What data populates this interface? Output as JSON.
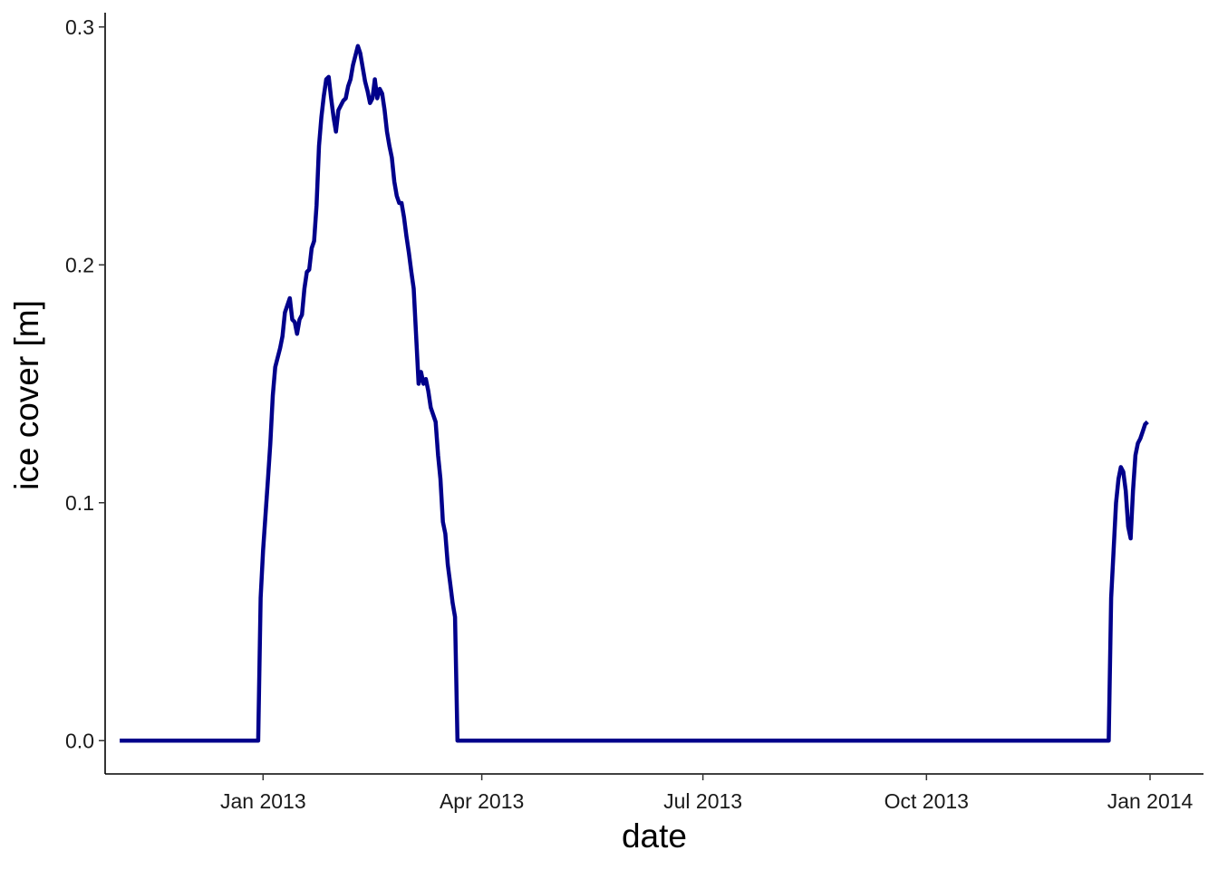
{
  "chart_data": {
    "type": "line",
    "xlabel": "date",
    "ylabel": "ice cover [m]",
    "xlim": [
      "2012-10-28",
      "2014-01-23"
    ],
    "ylim": [
      -0.014,
      0.306
    ],
    "x_ticks": [
      {
        "date": "2013-01-01",
        "label": "Jan 2013"
      },
      {
        "date": "2013-04-01",
        "label": "Apr 2013"
      },
      {
        "date": "2013-07-01",
        "label": "Jul 2013"
      },
      {
        "date": "2013-10-01",
        "label": "Oct 2013"
      },
      {
        "date": "2014-01-01",
        "label": "Jan 2014"
      }
    ],
    "y_ticks": [
      {
        "value": 0.0,
        "label": "0.0"
      },
      {
        "value": 0.1,
        "label": "0.1"
      },
      {
        "value": 0.2,
        "label": "0.2"
      },
      {
        "value": 0.3,
        "label": "0.3"
      }
    ],
    "grid": false,
    "legend": "none",
    "series": [
      {
        "color": "#00008B",
        "points": [
          [
            "2012-11-03",
            0.0
          ],
          [
            "2012-12-30",
            0.0
          ],
          [
            "2012-12-31",
            0.06
          ],
          [
            "2013-01-01",
            0.08
          ],
          [
            "2013-01-02",
            0.095
          ],
          [
            "2013-01-03",
            0.11
          ],
          [
            "2013-01-04",
            0.125
          ],
          [
            "2013-01-05",
            0.145
          ],
          [
            "2013-01-06",
            0.157
          ],
          [
            "2013-01-08",
            0.165
          ],
          [
            "2013-01-09",
            0.17
          ],
          [
            "2013-01-10",
            0.18
          ],
          [
            "2013-01-11",
            0.183
          ],
          [
            "2013-01-12",
            0.186
          ],
          [
            "2013-01-13",
            0.177
          ],
          [
            "2013-01-14",
            0.176
          ],
          [
            "2013-01-15",
            0.171
          ],
          [
            "2013-01-16",
            0.177
          ],
          [
            "2013-01-17",
            0.179
          ],
          [
            "2013-01-18",
            0.19
          ],
          [
            "2013-01-19",
            0.197
          ],
          [
            "2013-01-20",
            0.198
          ],
          [
            "2013-01-21",
            0.207
          ],
          [
            "2013-01-22",
            0.21
          ],
          [
            "2013-01-23",
            0.225
          ],
          [
            "2013-01-24",
            0.25
          ],
          [
            "2013-01-25",
            0.262
          ],
          [
            "2013-01-26",
            0.271
          ],
          [
            "2013-01-27",
            0.278
          ],
          [
            "2013-01-28",
            0.279
          ],
          [
            "2013-01-29",
            0.27
          ],
          [
            "2013-01-30",
            0.262
          ],
          [
            "2013-01-31",
            0.256
          ],
          [
            "2013-02-01",
            0.265
          ],
          [
            "2013-02-02",
            0.267
          ],
          [
            "2013-02-03",
            0.269
          ],
          [
            "2013-02-04",
            0.27
          ],
          [
            "2013-02-05",
            0.275
          ],
          [
            "2013-02-06",
            0.278
          ],
          [
            "2013-02-07",
            0.284
          ],
          [
            "2013-02-08",
            0.288
          ],
          [
            "2013-02-09",
            0.292
          ],
          [
            "2013-02-10",
            0.289
          ],
          [
            "2013-02-11",
            0.283
          ],
          [
            "2013-02-12",
            0.277
          ],
          [
            "2013-02-13",
            0.273
          ],
          [
            "2013-02-14",
            0.268
          ],
          [
            "2013-02-15",
            0.27
          ],
          [
            "2013-02-16",
            0.278
          ],
          [
            "2013-02-17",
            0.27
          ],
          [
            "2013-02-18",
            0.274
          ],
          [
            "2013-02-19",
            0.272
          ],
          [
            "2013-02-20",
            0.265
          ],
          [
            "2013-02-21",
            0.256
          ],
          [
            "2013-02-22",
            0.25
          ],
          [
            "2013-02-23",
            0.245
          ],
          [
            "2013-02-24",
            0.235
          ],
          [
            "2013-02-25",
            0.229
          ],
          [
            "2013-02-26",
            0.226
          ],
          [
            "2013-02-27",
            0.226
          ],
          [
            "2013-02-28",
            0.22
          ],
          [
            "2013-03-01",
            0.212
          ],
          [
            "2013-03-02",
            0.205
          ],
          [
            "2013-03-03",
            0.197
          ],
          [
            "2013-03-04",
            0.19
          ],
          [
            "2013-03-05",
            0.17
          ],
          [
            "2013-03-06",
            0.15
          ],
          [
            "2013-03-07",
            0.155
          ],
          [
            "2013-03-08",
            0.15
          ],
          [
            "2013-03-09",
            0.152
          ],
          [
            "2013-03-10",
            0.147
          ],
          [
            "2013-03-11",
            0.14
          ],
          [
            "2013-03-12",
            0.137
          ],
          [
            "2013-03-13",
            0.134
          ],
          [
            "2013-03-14",
            0.12
          ],
          [
            "2013-03-15",
            0.11
          ],
          [
            "2013-03-16",
            0.092
          ],
          [
            "2013-03-17",
            0.087
          ],
          [
            "2013-03-18",
            0.074
          ],
          [
            "2013-03-19",
            0.066
          ],
          [
            "2013-03-20",
            0.058
          ],
          [
            "2013-03-21",
            0.052
          ],
          [
            "2013-03-22",
            0.0
          ],
          [
            "2013-12-15",
            0.0
          ],
          [
            "2013-12-16",
            0.06
          ],
          [
            "2013-12-17",
            0.08
          ],
          [
            "2013-12-18",
            0.1
          ],
          [
            "2013-12-19",
            0.11
          ],
          [
            "2013-12-20",
            0.115
          ],
          [
            "2013-12-21",
            0.113
          ],
          [
            "2013-12-22",
            0.105
          ],
          [
            "2013-12-23",
            0.09
          ],
          [
            "2013-12-24",
            0.085
          ],
          [
            "2013-12-25",
            0.105
          ],
          [
            "2013-12-26",
            0.12
          ],
          [
            "2013-12-27",
            0.125
          ],
          [
            "2013-12-28",
            0.127
          ],
          [
            "2013-12-29",
            0.13
          ],
          [
            "2013-12-30",
            0.133
          ],
          [
            "2013-12-31",
            0.134
          ]
        ]
      }
    ]
  }
}
